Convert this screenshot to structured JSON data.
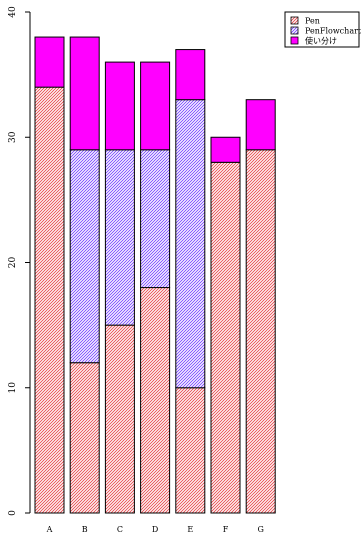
{
  "chart_data": {
    "type": "bar",
    "stacked": true,
    "categories": [
      "A",
      "B",
      "C",
      "D",
      "E",
      "F",
      "G"
    ],
    "series": [
      {
        "name": "Pen",
        "values": [
          34,
          12,
          15,
          18,
          10,
          28,
          29
        ],
        "color": "#e8474c",
        "pattern": "diagonal-hatch"
      },
      {
        "name": "PenFlowchart",
        "values": [
          0,
          17,
          14,
          11,
          23,
          0,
          0
        ],
        "color": "#7744ff",
        "pattern": "diagonal-hatch"
      },
      {
        "name": "使い分け",
        "values": [
          4,
          9,
          7,
          7,
          4,
          2,
          4
        ],
        "color": "#ff00ff",
        "pattern": "solid"
      }
    ],
    "y_ticks": [
      "0",
      "10",
      "20",
      "30",
      "40"
    ],
    "ylim": [
      0,
      40
    ],
    "grid": false,
    "legend_position": "top-right",
    "title": "",
    "xlabel": "",
    "ylabel": ""
  }
}
